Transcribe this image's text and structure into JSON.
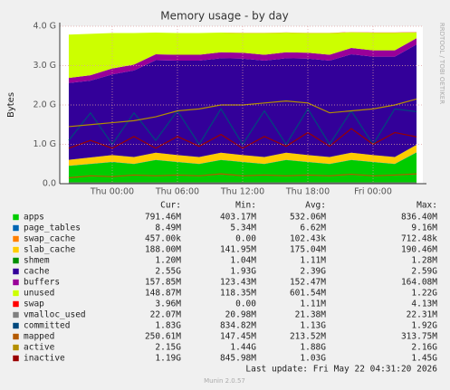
{
  "chart_data": {
    "type": "area",
    "title": "Memory usage - by day",
    "y_label": "Bytes",
    "side_note": "RRDTOOL / TOBI OETIKER",
    "x": [
      -4,
      -2,
      0,
      2,
      4,
      6,
      8,
      10,
      12,
      14,
      16,
      18,
      20,
      22,
      24,
      26,
      28
    ],
    "xlim": [
      -4.83,
      28.58
    ],
    "xticks": [
      {
        "value": 0,
        "label": "Thu 00:00"
      },
      {
        "value": 6,
        "label": "Thu 06:00"
      },
      {
        "value": 12,
        "label": "Thu 12:00"
      },
      {
        "value": 18,
        "label": "Thu 18:00"
      },
      {
        "value": 24,
        "label": "Fri 00:00"
      }
    ],
    "ylim": [
      0,
      4
    ],
    "yticks": [
      {
        "value": 0,
        "label": "0.0"
      },
      {
        "value": 1,
        "label": "1.0 G"
      },
      {
        "value": 2,
        "label": "2.0 G"
      },
      {
        "value": 3,
        "label": "3.0 G"
      },
      {
        "value": 4,
        "label": "4.0 G"
      }
    ],
    "grid": true,
    "stat_headers": [
      "Cur:",
      "Min:",
      "Avg:",
      "Max:"
    ],
    "series": [
      {
        "name": "apps",
        "color": "#00cc00",
        "draw": "stack",
        "stats": [
          "791.46M",
          "403.17M",
          "532.06M",
          "836.40M"
        ],
        "values": [
          0.45,
          0.5,
          0.55,
          0.5,
          0.6,
          0.55,
          0.5,
          0.6,
          0.55,
          0.5,
          0.6,
          0.55,
          0.5,
          0.6,
          0.55,
          0.5,
          0.79
        ]
      },
      {
        "name": "page_tables",
        "color": "#0066b3",
        "draw": "stack",
        "stats": [
          "8.49M",
          "5.34M",
          "6.62M",
          "9.16M"
        ],
        "values": [
          0.006,
          0.006,
          0.006,
          0.006,
          0.007,
          0.006,
          0.006,
          0.007,
          0.006,
          0.006,
          0.007,
          0.006,
          0.006,
          0.007,
          0.006,
          0.006,
          0.008
        ]
      },
      {
        "name": "swap_cache",
        "color": "#ff8000",
        "draw": "stack",
        "stats": [
          "457.00k",
          "0.00",
          "102.43k",
          "712.48k"
        ],
        "values": [
          0,
          0,
          0,
          0,
          0,
          0,
          0,
          0,
          0,
          0,
          0,
          0,
          0,
          0,
          0,
          0,
          0.0005
        ]
      },
      {
        "name": "slab_cache",
        "color": "#ffcc00",
        "draw": "stack",
        "stats": [
          "188.00M",
          "141.95M",
          "175.04M",
          "190.46M"
        ],
        "values": [
          0.15,
          0.16,
          0.17,
          0.17,
          0.18,
          0.17,
          0.17,
          0.18,
          0.17,
          0.17,
          0.18,
          0.17,
          0.17,
          0.18,
          0.17,
          0.17,
          0.188
        ]
      },
      {
        "name": "shmem",
        "color": "#008f00",
        "draw": "stack",
        "stats": [
          "1.20M",
          "1.04M",
          "1.11M",
          "1.28M"
        ],
        "values": [
          0.001,
          0.001,
          0.001,
          0.001,
          0.001,
          0.001,
          0.001,
          0.001,
          0.001,
          0.001,
          0.001,
          0.001,
          0.001,
          0.001,
          0.001,
          0.001,
          0.001
        ]
      },
      {
        "name": "cache",
        "color": "#330099",
        "draw": "stack",
        "stats": [
          "2.55G",
          "1.93G",
          "2.39G",
          "2.59G"
        ],
        "values": [
          1.95,
          1.95,
          2.05,
          2.2,
          2.35,
          2.4,
          2.45,
          2.4,
          2.45,
          2.45,
          2.4,
          2.45,
          2.45,
          2.5,
          2.5,
          2.55,
          2.55
        ]
      },
      {
        "name": "buffers",
        "color": "#990099",
        "draw": "stack",
        "stats": [
          "157.85M",
          "123.43M",
          "152.47M",
          "164.08M"
        ],
        "values": [
          0.13,
          0.14,
          0.15,
          0.15,
          0.15,
          0.15,
          0.15,
          0.15,
          0.15,
          0.15,
          0.15,
          0.15,
          0.15,
          0.16,
          0.16,
          0.16,
          0.158
        ]
      },
      {
        "name": "unused",
        "color": "#ccff00",
        "draw": "stack",
        "stats": [
          "148.87M",
          "118.35M",
          "601.54M",
          "1.22G"
        ],
        "values": [
          1.1,
          1.05,
          0.9,
          0.8,
          0.55,
          0.55,
          0.55,
          0.5,
          0.5,
          0.55,
          0.5,
          0.5,
          0.55,
          0.4,
          0.45,
          0.45,
          0.15
        ]
      },
      {
        "name": "swap",
        "color": "#ff0000",
        "draw": "stack",
        "stats": [
          "3.96M",
          "0.00",
          "1.11M",
          "4.13M"
        ],
        "values": [
          0,
          0,
          0,
          0,
          0,
          0,
          0,
          0,
          0.004,
          0.004,
          0.004,
          0.004,
          0.004,
          0.004,
          0.004,
          0.004,
          0.004
        ]
      },
      {
        "name": "vmalloc_used",
        "color": "#808080",
        "draw": "line",
        "stats": [
          "22.07M",
          "20.98M",
          "21.38M",
          "22.31M"
        ],
        "values": [
          0.021,
          0.021,
          0.021,
          0.021,
          0.021,
          0.021,
          0.021,
          0.021,
          0.021,
          0.021,
          0.021,
          0.021,
          0.022,
          0.022,
          0.022,
          0.022,
          0.022
        ]
      },
      {
        "name": "committed",
        "color": "#00487d",
        "draw": "line",
        "stats": [
          "1.83G",
          "834.82M",
          "1.13G",
          "1.92G"
        ],
        "values": [
          1.1,
          1.8,
          1.0,
          1.8,
          1.1,
          1.85,
          1.0,
          1.9,
          1.0,
          1.85,
          1.0,
          1.9,
          1.0,
          1.85,
          1.0,
          1.9,
          1.83
        ]
      },
      {
        "name": "mapped",
        "color": "#b35a00",
        "draw": "line",
        "stats": [
          "250.61M",
          "147.45M",
          "213.52M",
          "313.75M"
        ],
        "values": [
          0.15,
          0.2,
          0.18,
          0.22,
          0.2,
          0.22,
          0.2,
          0.25,
          0.2,
          0.22,
          0.2,
          0.22,
          0.2,
          0.24,
          0.2,
          0.22,
          0.25
        ]
      },
      {
        "name": "active",
        "color": "#b38f00",
        "draw": "line",
        "stats": [
          "2.15G",
          "1.44G",
          "1.88G",
          "2.16G"
        ],
        "values": [
          1.45,
          1.5,
          1.55,
          1.6,
          1.7,
          1.85,
          1.9,
          2.0,
          2.0,
          2.05,
          2.1,
          2.05,
          1.8,
          1.85,
          1.9,
          2.0,
          2.15
        ]
      },
      {
        "name": "inactive",
        "color": "#990000",
        "draw": "line",
        "stats": [
          "1.19G",
          "845.98M",
          "1.03G",
          "1.45G"
        ],
        "values": [
          0.9,
          1.1,
          0.9,
          1.2,
          0.9,
          1.2,
          0.95,
          1.25,
          0.9,
          1.2,
          0.95,
          1.3,
          0.95,
          1.4,
          1.0,
          1.3,
          1.19
        ]
      }
    ],
    "footer": "Last update: Fri May 22 04:31:20 2026",
    "version": "Munin 2.0.57"
  }
}
